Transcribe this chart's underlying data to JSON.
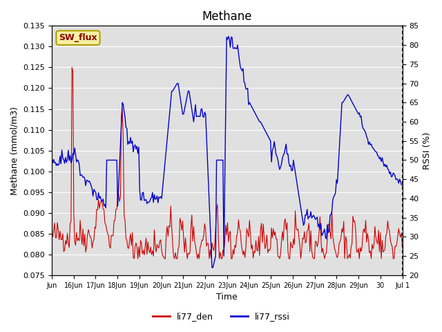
{
  "title": "Methane",
  "ylabel_left": "Methane (mmol/m3)",
  "ylabel_right": "RSSI (%)",
  "xlabel": "Time",
  "ylim_left": [
    0.075,
    0.135
  ],
  "ylim_right": [
    20,
    85
  ],
  "yticks_left": [
    0.075,
    0.08,
    0.085,
    0.09,
    0.095,
    0.1,
    0.105,
    0.11,
    0.115,
    0.12,
    0.125,
    0.13,
    0.135
  ],
  "yticks_right": [
    20,
    25,
    30,
    35,
    40,
    45,
    50,
    55,
    60,
    65,
    70,
    75,
    80,
    85
  ],
  "color_red": "#cc0000",
  "color_blue": "#0000cc",
  "bg_color": "#e0e0e0",
  "sw_flux_bg": "#f5f0a0",
  "sw_flux_border": "#b0a000",
  "sw_flux_text_color": "#8b0000",
  "legend_red_label": "li77_den",
  "legend_blue_label": "li77_rssi",
  "sw_flux_label": "SW_flux",
  "xtick_positions": [
    0,
    1,
    2,
    3,
    4,
    5,
    6,
    7,
    8,
    9,
    10,
    11,
    12,
    13,
    14,
    15,
    16
  ],
  "xtick_labels": [
    "Jun",
    "16Jun",
    "17Jun",
    "18Jun",
    "19Jun",
    "20Jun",
    "21Jun",
    "22Jun",
    "23Jun",
    "24Jun",
    "25Jun",
    "26Jun",
    "27Jun",
    "28Jun",
    "29Jun",
    "30",
    "Jul 1"
  ]
}
